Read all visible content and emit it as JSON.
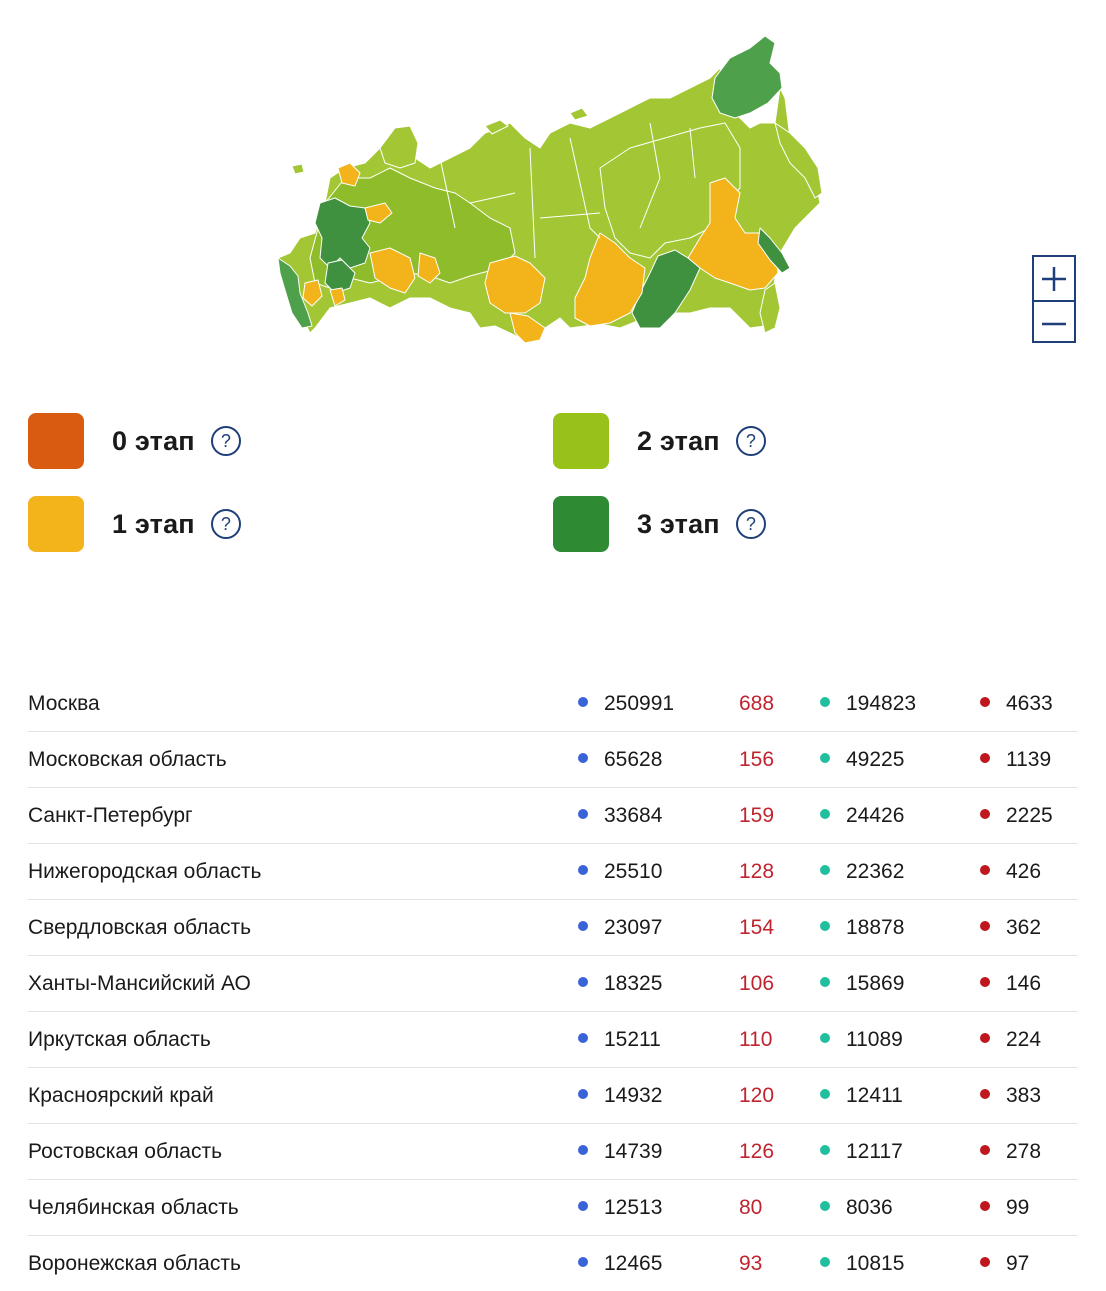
{
  "legend": [
    {
      "label": "0 этап",
      "color": "#d95b10"
    },
    {
      "label": "1 этап",
      "color": "#f2b41a"
    },
    {
      "label": "2 этап",
      "color": "#98c21a"
    },
    {
      "label": "3 этап",
      "color": "#2e8b34"
    }
  ],
  "legend_help_glyph": "?",
  "zoom": {
    "in_icon": "plus-icon",
    "out_icon": "minus-icon"
  },
  "colors": {
    "cases_dot": "#3a63d8",
    "new_cases_text": "#c0242e",
    "recovered_dot": "#1fbfa0",
    "deaths_dot": "#c0161f",
    "accent": "#1f3f7a"
  },
  "regions": [
    {
      "name": "Москва",
      "cases": "250991",
      "new": "688",
      "recovered": "194823",
      "deaths": "4633"
    },
    {
      "name": "Московская область",
      "cases": "65628",
      "new": "156",
      "recovered": "49225",
      "deaths": "1139"
    },
    {
      "name": "Санкт-Петербург",
      "cases": "33684",
      "new": "159",
      "recovered": "24426",
      "deaths": "2225"
    },
    {
      "name": "Нижегородская область",
      "cases": "25510",
      "new": "128",
      "recovered": "22362",
      "deaths": "426"
    },
    {
      "name": "Свердловская область",
      "cases": "23097",
      "new": "154",
      "recovered": "18878",
      "deaths": "362"
    },
    {
      "name": "Ханты-Мансийский АО",
      "cases": "18325",
      "new": "106",
      "recovered": "15869",
      "deaths": "146"
    },
    {
      "name": "Иркутская область",
      "cases": "15211",
      "new": "110",
      "recovered": "11089",
      "deaths": "224"
    },
    {
      "name": "Красноярский край",
      "cases": "14932",
      "new": "120",
      "recovered": "12411",
      "deaths": "383"
    },
    {
      "name": "Ростовская область",
      "cases": "14739",
      "new": "126",
      "recovered": "12117",
      "deaths": "278"
    },
    {
      "name": "Челябинская область",
      "cases": "12513",
      "new": "80",
      "recovered": "8036",
      "deaths": "99"
    },
    {
      "name": "Воронежская область",
      "cases": "12465",
      "new": "93",
      "recovered": "10815",
      "deaths": "97"
    }
  ]
}
